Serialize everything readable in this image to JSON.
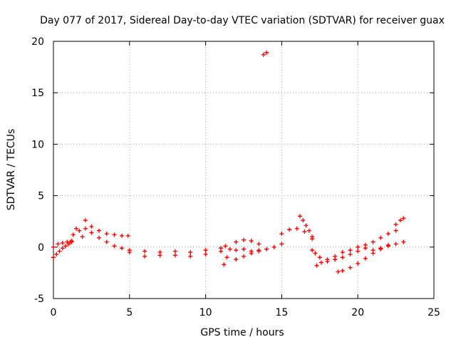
{
  "chart_data": {
    "type": "scatter",
    "title": "Day 077 of 2017, Sidereal Day-to-day VTEC variation (SDTVAR) for receiver guax",
    "xlabel": "GPS time / hours",
    "ylabel": "SDTVAR / TECUs",
    "xlim": [
      0,
      25
    ],
    "ylim": [
      -5,
      20
    ],
    "xticks": [
      0,
      5,
      10,
      15,
      20,
      25
    ],
    "yticks": [
      -5,
      0,
      5,
      10,
      15,
      20
    ],
    "grid": true,
    "marker": "+",
    "color": "#ff0000",
    "series": [
      {
        "name": "SDTVAR",
        "segments": [
          {
            "x": [
              0.0,
              0.2,
              0.4,
              0.6,
              0.8,
              1.0,
              1.2
            ],
            "y": [
              -1.0,
              -0.7,
              -0.4,
              -0.1,
              0.1,
              0.3,
              0.5
            ]
          },
          {
            "x": [
              0.0,
              0.3,
              0.6,
              0.9,
              1.2
            ],
            "y": [
              0.0,
              0.3,
              0.4,
              0.5,
              0.6
            ]
          },
          {
            "x": [
              1.1,
              1.3,
              1.5,
              1.7,
              1.9
            ],
            "y": [
              0.5,
              1.2,
              1.8,
              1.6,
              1.0
            ]
          },
          {
            "x": [
              2.1,
              2.5,
              3.0,
              3.5,
              4.0,
              4.5,
              4.9
            ],
            "y": [
              2.6,
              2.0,
              1.6,
              1.3,
              1.2,
              1.1,
              1.1
            ]
          },
          {
            "x": [
              2.1,
              2.5,
              3.0,
              3.5,
              4.0,
              4.5,
              5.0
            ],
            "y": [
              1.8,
              1.4,
              0.9,
              0.5,
              0.1,
              -0.1,
              -0.3
            ]
          },
          {
            "x": [
              5.0,
              6.0,
              7.0,
              8.0,
              9.0,
              10.0,
              11.0
            ],
            "y": [
              -0.5,
              -0.4,
              -0.5,
              -0.4,
              -0.5,
              -0.3,
              -0.4
            ]
          },
          {
            "x": [
              6.0,
              7.0,
              8.0,
              9.0,
              10.0
            ],
            "y": [
              -0.9,
              -0.8,
              -0.8,
              -0.9,
              -0.7
            ]
          },
          {
            "x": [
              11.0,
              11.3,
              11.6
            ],
            "y": [
              -0.1,
              0.1,
              -0.2
            ]
          },
          {
            "x": [
              11.2,
              11.4
            ],
            "y": [
              -1.7,
              -1.0
            ]
          },
          {
            "x": [
              12.0,
              12.5,
              13.0,
              13.5,
              14.0,
              14.5,
              15.0
            ],
            "y": [
              -0.3,
              -0.2,
              -0.4,
              -0.3,
              -0.2,
              0.0,
              0.3
            ]
          },
          {
            "x": [
              12.0,
              12.5,
              13.0,
              13.5
            ],
            "y": [
              -1.2,
              -0.9,
              -0.6,
              -0.4
            ]
          },
          {
            "x": [
              12.0,
              12.5,
              13.0,
              13.5
            ],
            "y": [
              0.5,
              0.7,
              0.6,
              0.3
            ]
          },
          {
            "x": [
              13.8,
              14.0
            ],
            "y": [
              18.7,
              18.9
            ]
          },
          {
            "x": [
              15.0,
              15.5,
              16.0,
              16.5,
              17.0
            ],
            "y": [
              1.3,
              1.7,
              1.8,
              1.5,
              1.0
            ]
          },
          {
            "x": [
              16.2,
              16.4,
              16.6,
              16.8,
              17.0
            ],
            "y": [
              3.0,
              2.6,
              2.1,
              1.6,
              0.8
            ]
          },
          {
            "x": [
              17.0,
              17.2,
              17.5,
              18.0,
              18.5,
              19.0,
              19.5,
              20.0,
              20.5
            ],
            "y": [
              -0.3,
              -0.6,
              -1.0,
              -1.4,
              -1.2,
              -1.0,
              -0.7,
              -0.4,
              -0.1
            ]
          },
          {
            "x": [
              17.3,
              17.6,
              18.0,
              18.5,
              19.0,
              19.5,
              20.0
            ],
            "y": [
              -1.8,
              -1.5,
              -1.2,
              -0.9,
              -0.5,
              -0.3,
              0.0
            ]
          },
          {
            "x": [
              18.7,
              19.0,
              19.5,
              20.0,
              20.5,
              21.0,
              21.5,
              22.0
            ],
            "y": [
              -2.4,
              -2.3,
              -2.0,
              -1.6,
              -1.1,
              -0.6,
              -0.2,
              0.1
            ]
          },
          {
            "x": [
              20.0,
              20.5,
              21.0,
              21.5,
              22.0,
              22.5
            ],
            "y": [
              0.0,
              0.2,
              0.5,
              0.9,
              1.3,
              1.6
            ]
          },
          {
            "x": [
              21.0,
              21.5,
              22.0,
              22.5,
              23.0
            ],
            "y": [
              -0.3,
              -0.1,
              0.2,
              0.3,
              0.5
            ]
          },
          {
            "x": [
              22.5,
              22.8,
              23.0
            ],
            "y": [
              2.2,
              2.6,
              2.8
            ]
          }
        ]
      }
    ]
  }
}
